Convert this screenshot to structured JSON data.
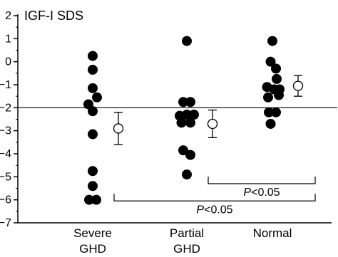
{
  "chart_data": {
    "type": "scatter",
    "ylabel": "IGF-I SDS",
    "ylim": [
      -7,
      2
    ],
    "yticks": [
      2,
      1,
      0,
      -1,
      -2,
      -3,
      -4,
      -5,
      -6,
      -7
    ],
    "tick_labels": [
      "2",
      "1",
      "0",
      "−1",
      "−2",
      "−3",
      "−4",
      "−5",
      "−6",
      "−7"
    ],
    "categories": [
      {
        "line1": "Severe",
        "line2": "GHD"
      },
      {
        "line1": "Partial",
        "line2": "GHD"
      },
      {
        "line1": "Normal",
        "line2": ""
      }
    ],
    "reference_line": -2,
    "groups": [
      {
        "points": [
          {
            "x": 0.0,
            "y": 0.25
          },
          {
            "x": 0.0,
            "y": -0.35
          },
          {
            "x": 0.0,
            "y": -1.15
          },
          {
            "x": 0.12,
            "y": -1.55
          },
          {
            "x": -0.12,
            "y": -1.85
          },
          {
            "x": 0.0,
            "y": -2.15
          },
          {
            "x": 0.0,
            "y": -3.15
          },
          {
            "x": 0.0,
            "y": -4.75
          },
          {
            "x": 0.0,
            "y": -5.4
          },
          {
            "x": -0.1,
            "y": -6.0
          },
          {
            "x": 0.1,
            "y": -6.0
          }
        ],
        "mean": -2.9,
        "err_low": -3.6,
        "err_high": -2.2
      },
      {
        "points": [
          {
            "x": 0.0,
            "y": 0.9
          },
          {
            "x": -0.1,
            "y": -1.75
          },
          {
            "x": 0.1,
            "y": -1.75
          },
          {
            "x": -0.2,
            "y": -2.35
          },
          {
            "x": 0.0,
            "y": -2.3
          },
          {
            "x": 0.2,
            "y": -2.3
          },
          {
            "x": -0.15,
            "y": -2.65
          },
          {
            "x": 0.1,
            "y": -2.65
          },
          {
            "x": -0.1,
            "y": -3.85
          },
          {
            "x": 0.1,
            "y": -4.05
          },
          {
            "x": 0.0,
            "y": -4.9
          }
        ],
        "mean": -2.7,
        "err_low": -3.3,
        "err_high": -2.1
      },
      {
        "points": [
          {
            "x": 0.0,
            "y": 0.9
          },
          {
            "x": -0.05,
            "y": 0.0
          },
          {
            "x": 0.1,
            "y": -0.3
          },
          {
            "x": 0.12,
            "y": -0.75
          },
          {
            "x": -0.15,
            "y": -1.1
          },
          {
            "x": 0.05,
            "y": -1.2
          },
          {
            "x": 0.2,
            "y": -1.2
          },
          {
            "x": -0.12,
            "y": -1.55
          },
          {
            "x": 0.18,
            "y": -1.45
          },
          {
            "x": -0.1,
            "y": -2.2
          },
          {
            "x": 0.1,
            "y": -2.2
          },
          {
            "x": -0.05,
            "y": -2.7
          }
        ],
        "mean": -1.05,
        "err_low": -1.5,
        "err_high": -0.6
      }
    ],
    "annotations": [
      {
        "label": "P",
        "value": "<0.05",
        "from": 1,
        "to": 2,
        "y": -5.3
      },
      {
        "label": "P",
        "value": "<0.05",
        "from": 0,
        "to": 2,
        "y": -6.05
      }
    ]
  }
}
